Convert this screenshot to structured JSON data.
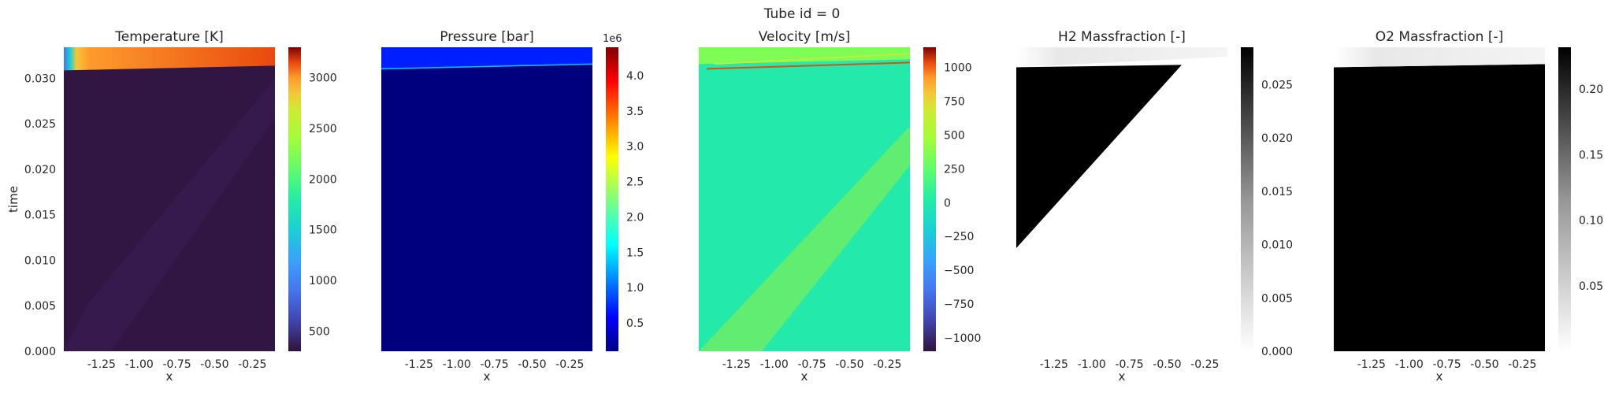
{
  "figure_title": "Tube id = 0",
  "chart_data": [
    {
      "type": "heatmap",
      "title": "Temperature [K]",
      "xlabel": "x",
      "ylabel": "time",
      "xticks": [
        "-1.25",
        "-1.00",
        "-0.75",
        "-0.50",
        "-0.25"
      ],
      "yticks": [
        "0.000",
        "0.005",
        "0.010",
        "0.015",
        "0.020",
        "0.025",
        "0.030"
      ],
      "xlim": [
        -1.5,
        -0.1
      ],
      "ylim": [
        0.0,
        0.0334
      ],
      "colormap": "turbo",
      "colorbar_ticks": [
        "500",
        "1000",
        "1500",
        "2000",
        "2500",
        "3000"
      ],
      "colorbar_range": [
        300,
        3300
      ],
      "colorbar_offset": "",
      "background_value": 320,
      "front_value": 2700
    },
    {
      "type": "heatmap",
      "title": "Pressure [bar]",
      "xlabel": "x",
      "ylabel": "",
      "xticks": [
        "-1.25",
        "-1.00",
        "-0.75",
        "-0.50",
        "-0.25"
      ],
      "yticks": [],
      "xlim": [
        -1.5,
        -0.1
      ],
      "ylim": [
        0.0,
        0.0334
      ],
      "colormap": "jet",
      "colorbar_ticks": [
        "0.5",
        "1.0",
        "1.5",
        "2.0",
        "2.5",
        "3.0",
        "3.5",
        "4.0"
      ],
      "colorbar_range": [
        0.1,
        4.4
      ],
      "colorbar_offset": "1e6",
      "background_value": 0.1,
      "front_value": 0.7
    },
    {
      "type": "heatmap",
      "title": "Velocity [m/s]",
      "xlabel": "x",
      "ylabel": "",
      "xticks": [
        "-1.25",
        "-1.00",
        "-0.75",
        "-0.50",
        "-0.25"
      ],
      "yticks": [],
      "xlim": [
        -1.5,
        -0.1
      ],
      "ylim": [
        0.0,
        0.0334
      ],
      "colormap": "turbo",
      "colorbar_ticks": [
        "1000",
        "750",
        "500",
        "250",
        "0",
        "−250",
        "−500",
        "−750",
        "−1000"
      ],
      "colorbar_range": [
        -1100,
        1150
      ],
      "colorbar_offset": "",
      "background_value": 0,
      "front_value": 700
    },
    {
      "type": "heatmap",
      "title": "H2 Massfraction [-]",
      "xlabel": "x",
      "ylabel": "",
      "xticks": [
        "-1.25",
        "-1.00",
        "-0.75",
        "-0.50",
        "-0.25"
      ],
      "yticks": [],
      "xlim": [
        -1.5,
        -0.1
      ],
      "ylim": [
        0.0,
        0.0334
      ],
      "colormap": "greys",
      "colorbar_ticks": [
        "0.025",
        "0.020",
        "0.015",
        "0.010",
        "0.005",
        "0.000"
      ],
      "colorbar_range": [
        0.0,
        0.0285
      ],
      "colorbar_offset": "",
      "fill_value": 0.0285,
      "empty_value": 0.0
    },
    {
      "type": "heatmap",
      "title": "O2 Massfraction [-]",
      "xlabel": "x",
      "ylabel": "",
      "xticks": [
        "-1.25",
        "-1.00",
        "-0.75",
        "-0.50",
        "-0.25"
      ],
      "yticks": [],
      "xlim": [
        -1.5,
        -0.1
      ],
      "ylim": [
        0.0,
        0.0334
      ],
      "colormap": "greys",
      "colorbar_ticks": [
        "0.20",
        "0.15",
        "0.10",
        "0.05"
      ],
      "colorbar_range": [
        0.0,
        0.232
      ],
      "colorbar_offset": "",
      "fill_value": 0.232,
      "empty_value": 0.0
    }
  ]
}
